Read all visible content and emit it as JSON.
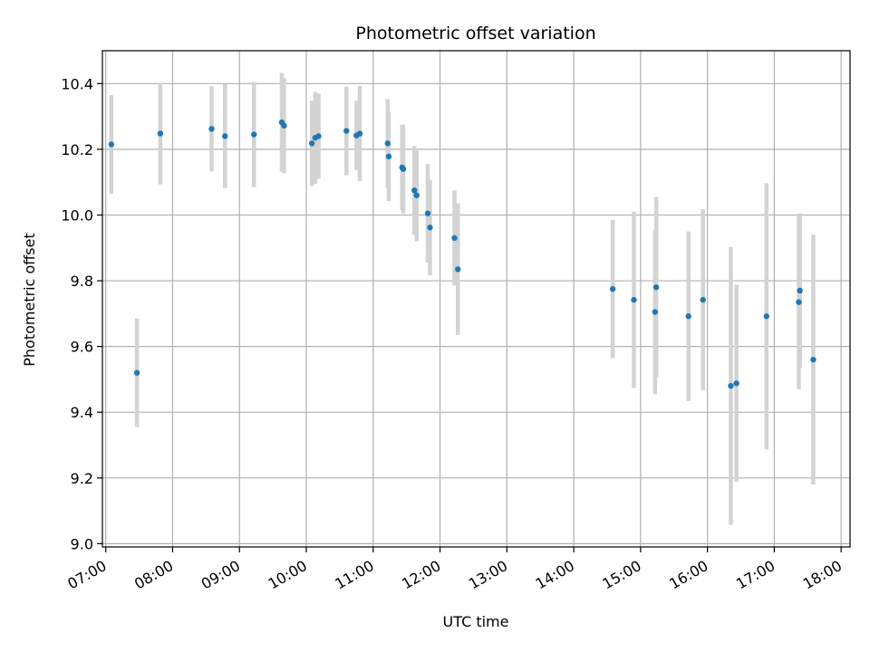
{
  "chart_data": {
    "type": "scatter",
    "title": "Photometric offset variation",
    "xlabel": "UTC time",
    "ylabel": "Photometric offset",
    "x_ticks": [
      "07:00",
      "08:00",
      "09:00",
      "10:00",
      "11:00",
      "12:00",
      "13:00",
      "14:00",
      "15:00",
      "16:00",
      "17:00",
      "18:00"
    ],
    "y_ticks": [
      "9.0",
      "9.2",
      "9.4",
      "9.6",
      "9.8",
      "10.0",
      "10.2",
      "10.4"
    ],
    "xlim": [
      "06:57",
      "18:08"
    ],
    "ylim": [
      8.99,
      10.5
    ],
    "grid": true,
    "colors": {
      "point": "#1f77b4",
      "errorbar": "#d3d3d3",
      "grid": "#b0b0b0"
    },
    "series": [
      {
        "points": [
          {
            "x": "07:05",
            "y": 10.215,
            "err": 0.15
          },
          {
            "x": "07:28",
            "y": 9.52,
            "err": 0.165
          },
          {
            "x": "07:49",
            "y": 10.248,
            "err": 0.155
          },
          {
            "x": "08:35",
            "y": 10.262,
            "err": 0.13
          },
          {
            "x": "08:47",
            "y": 10.24,
            "err": 0.158
          },
          {
            "x": "09:13",
            "y": 10.245,
            "err": 0.16
          },
          {
            "x": "09:38",
            "y": 10.282,
            "err": 0.15
          },
          {
            "x": "09:40",
            "y": 10.272,
            "err": 0.145
          },
          {
            "x": "10:05",
            "y": 10.218,
            "err": 0.13
          },
          {
            "x": "10:08",
            "y": 10.235,
            "err": 0.14
          },
          {
            "x": "10:11",
            "y": 10.24,
            "err": 0.13
          },
          {
            "x": "10:36",
            "y": 10.256,
            "err": 0.135
          },
          {
            "x": "10:45",
            "y": 10.242,
            "err": 0.105
          },
          {
            "x": "10:48",
            "y": 10.248,
            "err": 0.145
          },
          {
            "x": "11:13",
            "y": 10.218,
            "err": 0.135
          },
          {
            "x": "11:14",
            "y": 10.178,
            "err": 0.135
          },
          {
            "x": "11:26",
            "y": 10.145,
            "err": 0.13
          },
          {
            "x": "11:27",
            "y": 10.14,
            "err": 0.135
          },
          {
            "x": "11:37",
            "y": 10.075,
            "err": 0.135
          },
          {
            "x": "11:39",
            "y": 10.06,
            "err": 0.14
          },
          {
            "x": "11:49",
            "y": 10.005,
            "err": 0.15
          },
          {
            "x": "11:51",
            "y": 9.962,
            "err": 0.145
          },
          {
            "x": "12:13",
            "y": 9.93,
            "err": 0.145
          },
          {
            "x": "12:16",
            "y": 9.835,
            "err": 0.2
          },
          {
            "x": "14:35",
            "y": 9.775,
            "err": 0.21
          },
          {
            "x": "14:54",
            "y": 9.742,
            "err": 0.268
          },
          {
            "x": "15:13",
            "y": 9.705,
            "err": 0.25
          },
          {
            "x": "15:14",
            "y": 9.78,
            "err": 0.275
          },
          {
            "x": "15:43",
            "y": 9.692,
            "err": 0.258
          },
          {
            "x": "15:56",
            "y": 9.742,
            "err": 0.275
          },
          {
            "x": "16:21",
            "y": 9.48,
            "err": 0.423
          },
          {
            "x": "16:26",
            "y": 9.488,
            "err": 0.3
          },
          {
            "x": "16:53",
            "y": 9.692,
            "err": 0.405
          },
          {
            "x": "17:22",
            "y": 9.735,
            "err": 0.265
          },
          {
            "x": "17:23",
            "y": 9.77,
            "err": 0.235
          },
          {
            "x": "17:35",
            "y": 9.56,
            "err": 0.38
          }
        ]
      }
    ]
  }
}
